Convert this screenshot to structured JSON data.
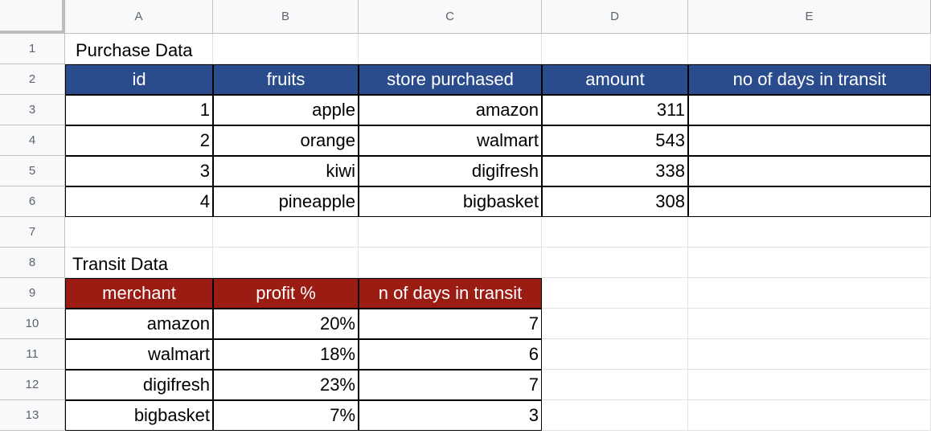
{
  "columns": [
    "A",
    "B",
    "C",
    "D",
    "E"
  ],
  "rows": [
    "1",
    "2",
    "3",
    "4",
    "5",
    "6",
    "7",
    "8",
    "9",
    "10",
    "11",
    "12",
    "13"
  ],
  "purchase": {
    "title": "Purchase Data",
    "headers": [
      "id",
      "fruits",
      "store purchased",
      "amount",
      "no of days in transit"
    ],
    "rows": [
      [
        "1",
        "apple",
        "amazon",
        "311",
        ""
      ],
      [
        "2",
        "orange",
        "walmart",
        "543",
        ""
      ],
      [
        "3",
        "kiwi",
        "digifresh",
        "338",
        ""
      ],
      [
        "4",
        "pineapple",
        "bigbasket",
        "308",
        ""
      ]
    ],
    "header_color": "#2b4c8c"
  },
  "transit": {
    "title": "Transit Data",
    "headers": [
      "merchant",
      "profit %",
      "n of days in transit"
    ],
    "rows": [
      [
        "amazon",
        "20%",
        "7"
      ],
      [
        "walmart",
        "18%",
        "6"
      ],
      [
        "digifresh",
        "23%",
        "7"
      ],
      [
        "bigbasket",
        "7%",
        "3"
      ]
    ],
    "header_color": "#9a1c13"
  }
}
